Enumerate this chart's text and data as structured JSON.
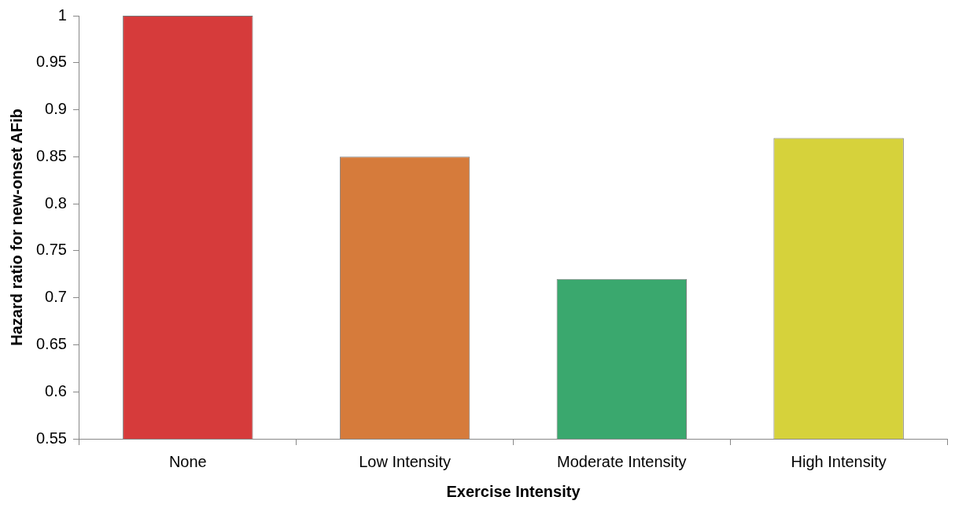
{
  "chart_data": {
    "type": "bar",
    "xlabel": "Exercise Intensity",
    "ylabel": "Hazard ratio for new-onset AFib",
    "categories": [
      "None",
      "Low Intensity",
      "Moderate Intensity",
      "High Intensity"
    ],
    "values": [
      1,
      0.85,
      0.72,
      0.87
    ],
    "colors": [
      "#d63b3b",
      "#d67b3b",
      "#3aa86e",
      "#d6d23b"
    ],
    "ylim": [
      0.55,
      1
    ],
    "yticks": [
      0.55,
      0.6,
      0.65,
      0.7,
      0.75,
      0.8,
      0.85,
      0.9,
      0.95,
      1
    ],
    "grid": false,
    "legend": false
  }
}
